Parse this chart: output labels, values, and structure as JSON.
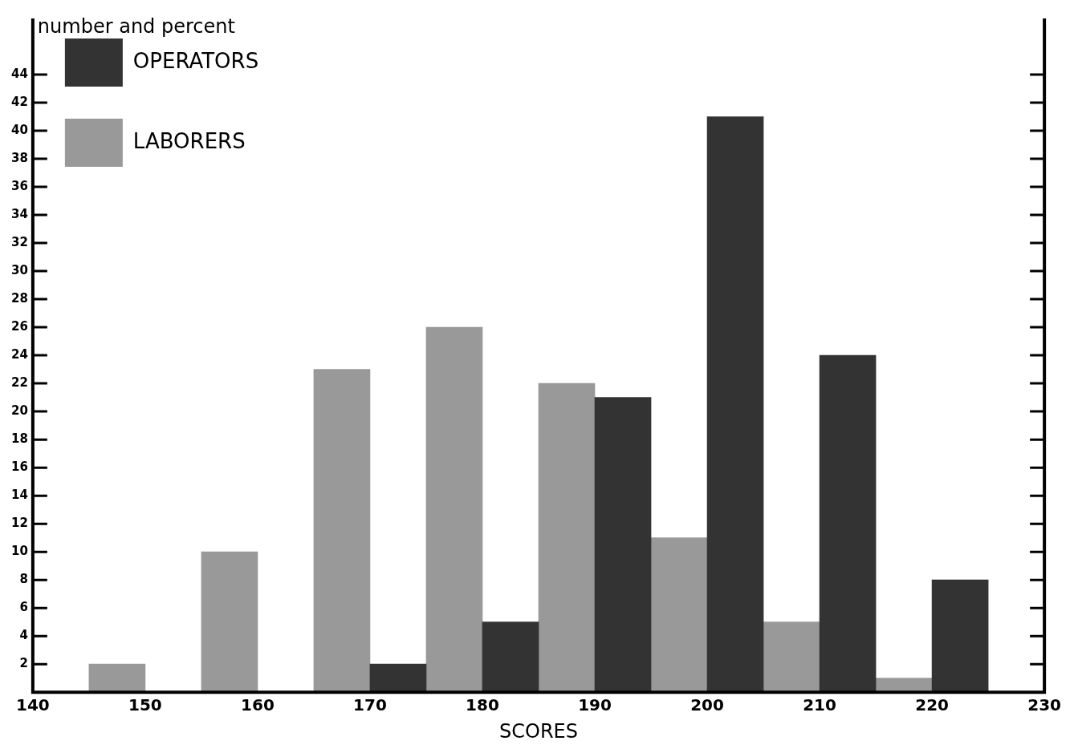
{
  "chart_data": {
    "type": "bar",
    "xlabel": "SCORES",
    "ylabel": "number and percent",
    "series": [
      {
        "name": "OPERATORS",
        "color": "#333333",
        "x": [
          172.5,
          182.5,
          192.5,
          202.5,
          212.5,
          222.5
        ],
        "values": [
          2,
          5,
          21,
          41,
          24,
          8
        ]
      },
      {
        "name": "LABORERS",
        "color": "#999999",
        "x": [
          147.5,
          157.5,
          167.5,
          177.5,
          187.5,
          197.5,
          207.5,
          217.5
        ],
        "values": [
          2,
          10,
          23,
          26,
          22,
          11,
          5,
          1
        ]
      }
    ],
    "xlim": [
      140,
      230
    ],
    "xticks": [
      140,
      150,
      160,
      170,
      180,
      190,
      200,
      210,
      220,
      230
    ],
    "ylim": [
      0,
      48
    ],
    "yticks": [
      2,
      4,
      6,
      8,
      10,
      12,
      14,
      16,
      18,
      20,
      22,
      24,
      26,
      28,
      30,
      32,
      34,
      36,
      38,
      40,
      42,
      44
    ],
    "grid": false,
    "legend": "top left"
  }
}
